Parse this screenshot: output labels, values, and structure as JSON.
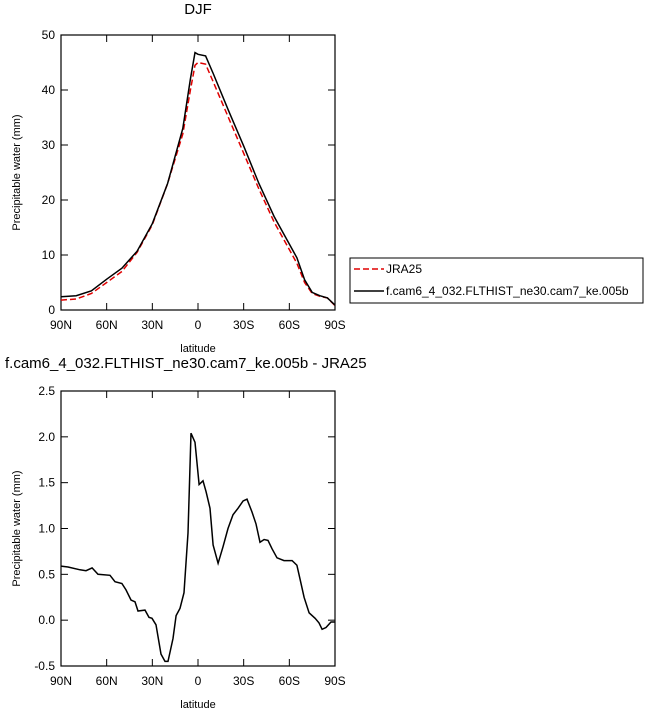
{
  "chart_data": [
    {
      "type": "line",
      "title": "DJF",
      "xlabel": "latitude",
      "ylabel": "Precipitable water (mm)",
      "x": [
        90,
        80,
        70,
        60,
        50,
        40,
        30,
        20,
        10,
        5,
        2,
        0,
        -5,
        -10,
        -20,
        -30,
        -40,
        -50,
        -60,
        -65,
        -70,
        -75,
        -80,
        -85,
        -90
      ],
      "xlim": [
        90,
        -90
      ],
      "xticks": [
        {
          "value": 90,
          "label": "90N"
        },
        {
          "value": 60,
          "label": "60N"
        },
        {
          "value": 30,
          "label": "30N"
        },
        0,
        {
          "value": -30,
          "label": "30S"
        },
        {
          "value": -60,
          "label": "60S"
        },
        {
          "value": -90,
          "label": "90S"
        }
      ],
      "ylim": [
        0,
        50
      ],
      "yticks": [
        0,
        10,
        20,
        30,
        40,
        50
      ],
      "legend": "right",
      "series": [
        {
          "name": "JRA25",
          "color": "#e00000",
          "line_style": "dashed",
          "values": [
            1.8,
            2.0,
            3.0,
            5.0,
            7.0,
            10.5,
            15.5,
            23,
            32,
            40,
            44.5,
            45,
            44.7,
            41.5,
            35,
            28.5,
            22,
            16,
            11,
            8.5,
            5,
            3,
            2.5,
            2.2,
            0.8
          ]
        },
        {
          "name": "f.cam6_4_032.FLTHIST_ne30.cam7_ke.005b",
          "color": "#000000",
          "line_style": "solid",
          "values": [
            2.4,
            2.6,
            3.5,
            5.6,
            7.6,
            10.7,
            15.7,
            23,
            33,
            42,
            46.8,
            46.5,
            46.2,
            43,
            36.3,
            29.8,
            23,
            17,
            12,
            9.5,
            5.5,
            3.2,
            2.6,
            2.2,
            0.9
          ]
        }
      ]
    },
    {
      "type": "line",
      "title": "f.cam6_4_032.FLTHIST_ne30.cam7_ke.005b - JRA25",
      "xlabel": "latitude",
      "ylabel": "Precipitable water (mm)",
      "x": [
        90,
        85.4,
        77.5,
        73.6,
        69.6,
        65.7,
        57.8,
        54.5,
        50,
        47.3,
        44,
        41.4,
        39.4,
        34.8,
        32.2,
        30.2,
        27.6,
        24.3,
        21.7,
        19.7,
        16.4,
        14.4,
        11.8,
        9.2,
        6.6,
        4.6,
        2.0,
        -0.7,
        -3.3,
        -5.3,
        -7.9,
        -9.9,
        -13.2,
        -16.4,
        -19.7,
        -23,
        -26.3,
        -29.6,
        -32.2,
        -35.5,
        -38.1,
        -40.7,
        -43.4,
        -46,
        -48.6,
        -51.9,
        -56.5,
        -61.8,
        -65,
        -67,
        -69.7,
        -73,
        -76.9,
        -79.5,
        -81.5,
        -84.1,
        -87.4,
        -90
      ],
      "xlim": [
        90,
        -90
      ],
      "xticks": [
        {
          "value": 90,
          "label": "90N"
        },
        {
          "value": 60,
          "label": "60N"
        },
        {
          "value": 30,
          "label": "30N"
        },
        0,
        {
          "value": -30,
          "label": "30S"
        },
        {
          "value": -60,
          "label": "60S"
        },
        {
          "value": -90,
          "label": "90S"
        }
      ],
      "ylim": [
        -0.5,
        2.5
      ],
      "yticks": [
        -0.5,
        {
          "value": 0,
          "label": "0.0"
        },
        0.5,
        {
          "value": 1,
          "label": "1.0"
        },
        1.5,
        {
          "value": 2,
          "label": "2.0"
        },
        2.5
      ],
      "series": [
        {
          "color": "#000000",
          "line_style": "solid",
          "values": [
            0.59,
            0.58,
            0.55,
            0.54,
            0.57,
            0.5,
            0.49,
            0.42,
            0.4,
            0.33,
            0.22,
            0.2,
            0.1,
            0.11,
            0.03,
            0.02,
            -0.05,
            -0.37,
            -0.45,
            -0.45,
            -0.2,
            0.05,
            0.13,
            0.3,
            0.95,
            2.04,
            1.94,
            1.48,
            1.52,
            1.4,
            1.22,
            0.82,
            0.62,
            0.8,
            1.0,
            1.15,
            1.22,
            1.3,
            1.32,
            1.18,
            1.05,
            0.85,
            0.88,
            0.87,
            0.78,
            0.68,
            0.65,
            0.65,
            0.6,
            0.45,
            0.25,
            0.08,
            0.02,
            -0.03,
            -0.1,
            -0.08,
            -0.02,
            -0.02
          ]
        }
      ]
    }
  ]
}
